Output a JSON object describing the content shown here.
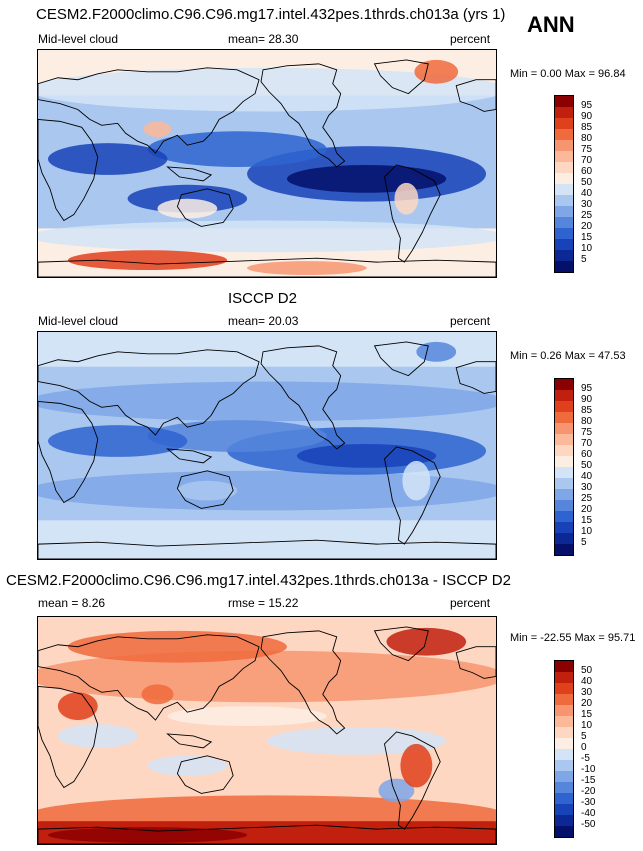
{
  "season": "ANN",
  "panels": [
    {
      "title": "CESM2.F2000climo.C96.C96.mg17.intel.432pes.1thrds.ch013a (yrs 1)",
      "left_label": "Mid-level cloud",
      "mid_label": "mean=  28.30",
      "units": "percent",
      "minmax": "Min =   0.00 Max =  96.84",
      "levels": [
        "95",
        "90",
        "85",
        "80",
        "75",
        "70",
        "60",
        "50",
        "40",
        "30",
        "25",
        "20",
        "15",
        "10",
        "5"
      ],
      "colors": [
        "#8b0000",
        "#c1200f",
        "#e0401c",
        "#ef6a3c",
        "#f79570",
        "#fbb999",
        "#fdd7c2",
        "#fdeee4",
        "#d4e4f7",
        "#a9c7ef",
        "#7fa6e6",
        "#5686dc",
        "#2f64d0",
        "#1742b8",
        "#0b2895",
        "#05106a"
      ],
      "map_style": "model"
    },
    {
      "title": "ISCCP D2",
      "left_label": "Mid-level cloud",
      "mid_label": "mean=  20.03",
      "units": "percent",
      "minmax": "Min =   0.26 Max =  47.53",
      "levels": [
        "95",
        "90",
        "85",
        "80",
        "75",
        "70",
        "60",
        "50",
        "40",
        "30",
        "25",
        "20",
        "15",
        "10",
        "5"
      ],
      "colors": [
        "#8b0000",
        "#c1200f",
        "#e0401c",
        "#ef6a3c",
        "#f79570",
        "#fbb999",
        "#fdd7c2",
        "#fdeee4",
        "#d4e4f7",
        "#a9c7ef",
        "#7fa6e6",
        "#5686dc",
        "#2f64d0",
        "#1742b8",
        "#0b2895",
        "#05106a"
      ],
      "map_style": "obs"
    },
    {
      "title": "CESM2.F2000climo.C96.C96.mg17.intel.432pes.1thrds.ch013a - ISCCP D2",
      "left_label": "mean =   8.26",
      "mid_label": "rmse =  15.22",
      "units": "percent",
      "minmax": "Min = -22.55 Max =  95.71",
      "levels": [
        "50",
        "40",
        "30",
        "20",
        "15",
        "10",
        "5",
        "0",
        "-5",
        "-10",
        "-15",
        "-20",
        "-30",
        "-40",
        "-50"
      ],
      "colors": [
        "#8b0000",
        "#c1200f",
        "#e0401c",
        "#ef6a3c",
        "#f79570",
        "#fbb999",
        "#fdd7c2",
        "#fdeee4",
        "#d4e4f7",
        "#a9c7ef",
        "#7fa6e6",
        "#5686dc",
        "#2f64d0",
        "#1742b8",
        "#0b2895",
        "#05106a"
      ],
      "map_style": "diff"
    }
  ]
}
